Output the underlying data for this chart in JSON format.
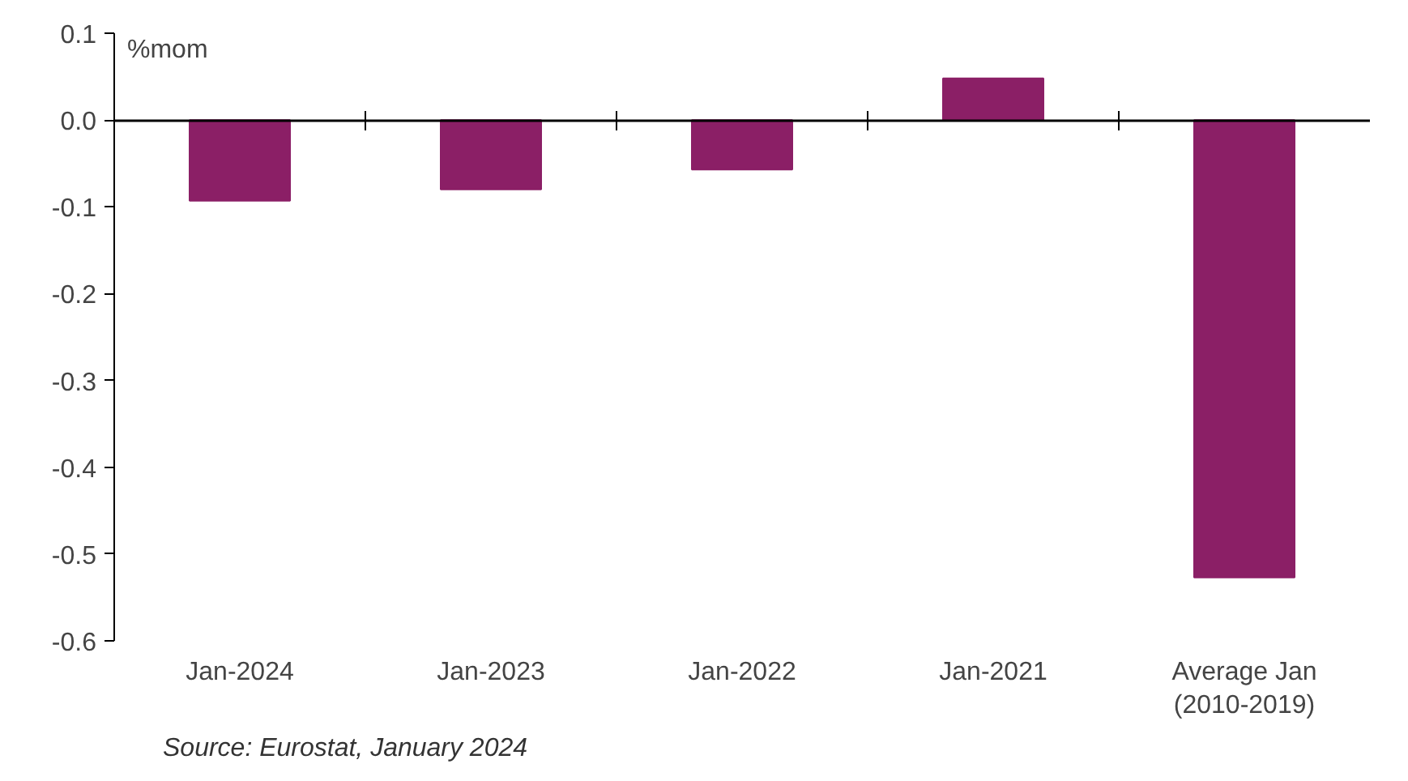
{
  "chart_data": {
    "type": "bar",
    "ylabel": "%mom",
    "categories": [
      "Jan-2024",
      "Jan-2023",
      "Jan-2022",
      "Jan-2021",
      "Average Jan\n(2010-2019)"
    ],
    "values": [
      -0.093,
      -0.08,
      -0.057,
      0.048,
      -0.527
    ],
    "color": "#8b1f66",
    "ylim": [
      -0.6,
      0.1
    ],
    "yticks": [
      -0.6,
      -0.5,
      -0.4,
      -0.3,
      -0.2,
      -0.1,
      {
        "value": 0,
        "label": "0.0"
      },
      0.1
    ],
    "annotations": [
      "Source: Eurostat, January 2024"
    ]
  }
}
